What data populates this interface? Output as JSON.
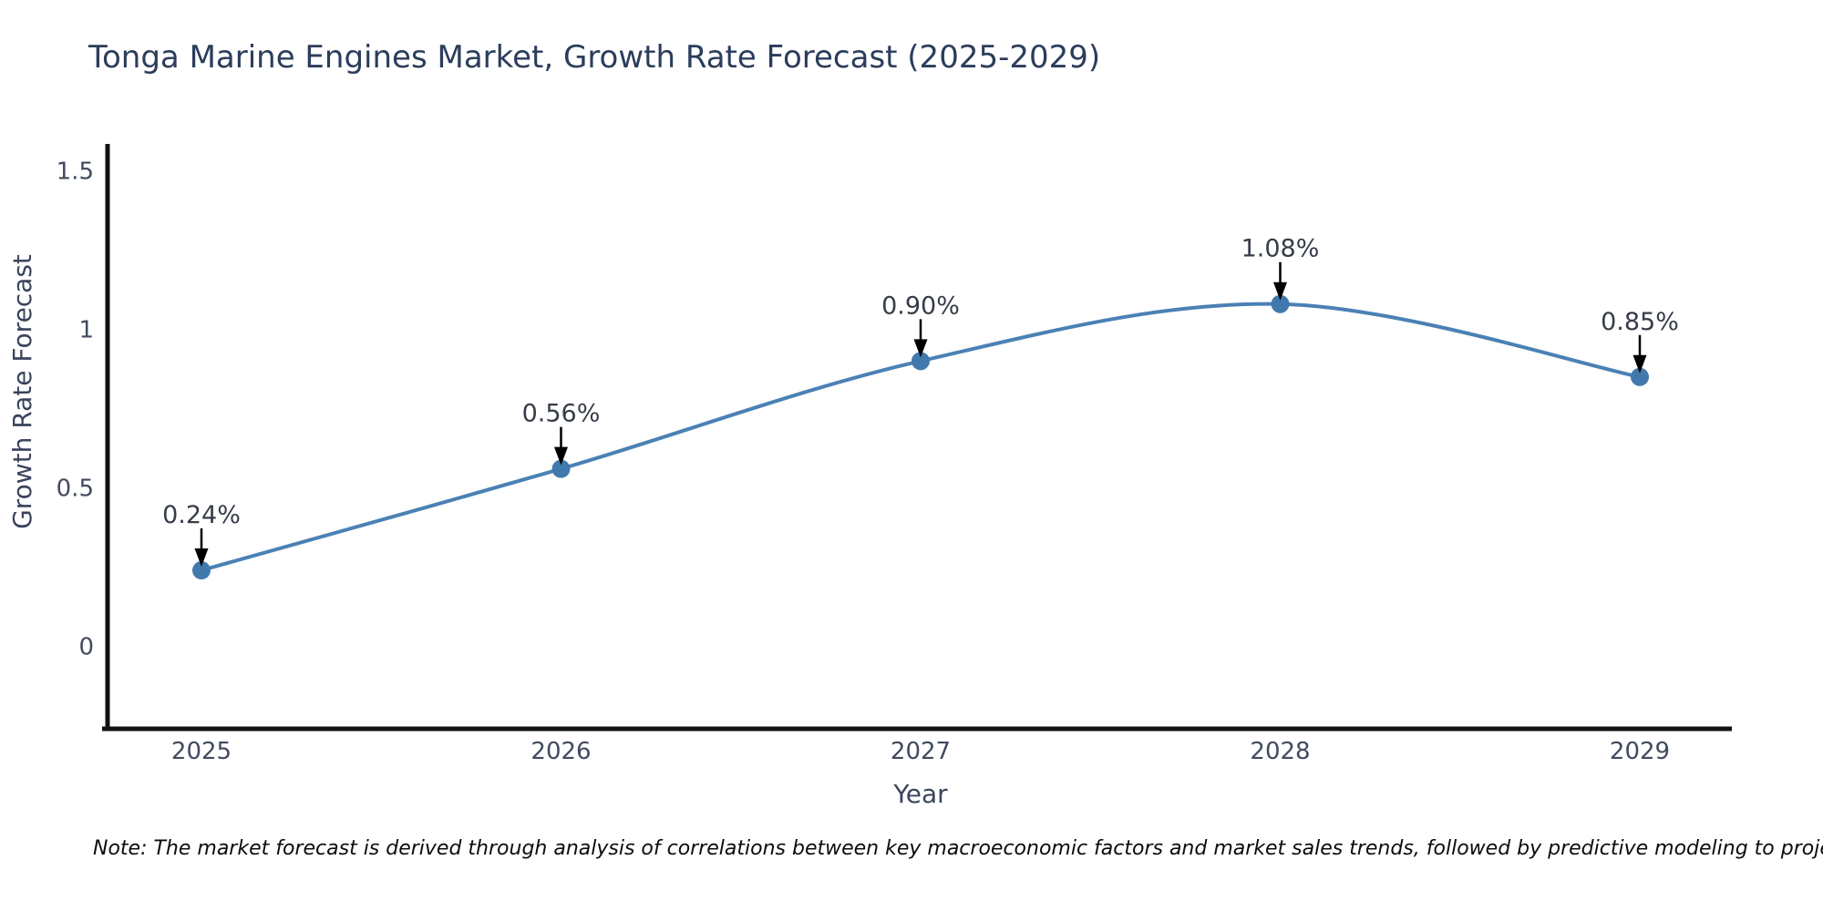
{
  "chart_data": {
    "type": "line",
    "title": "Tonga Marine Engines Market, Growth Rate Forecast (2025-2029)",
    "xlabel": "Year",
    "ylabel": "Growth Rate Forecast",
    "categories": [
      "2025",
      "2026",
      "2027",
      "2028",
      "2029"
    ],
    "values": [
      0.24,
      0.56,
      0.9,
      1.08,
      0.85
    ],
    "point_labels": [
      "0.24%",
      "0.56%",
      "0.90%",
      "1.08%",
      "0.85%"
    ],
    "yticks": [
      0,
      0.5,
      1,
      1.5
    ],
    "ytick_labels": [
      "0",
      "0.5",
      "1",
      "1.5"
    ],
    "ylim": [
      -0.26,
      1.585
    ],
    "grid": "off",
    "legend": "none",
    "line_shape": "spline",
    "line_color": "#4a81b5",
    "marker_color": "#4179ad",
    "axis_color": "#121212",
    "annotation_arrow_color": "#000000",
    "note": "Note: The market forecast is derived through analysis of correlations between key macroeconomic factors and market sales trends, followed by predictive modeling to project future sales"
  }
}
